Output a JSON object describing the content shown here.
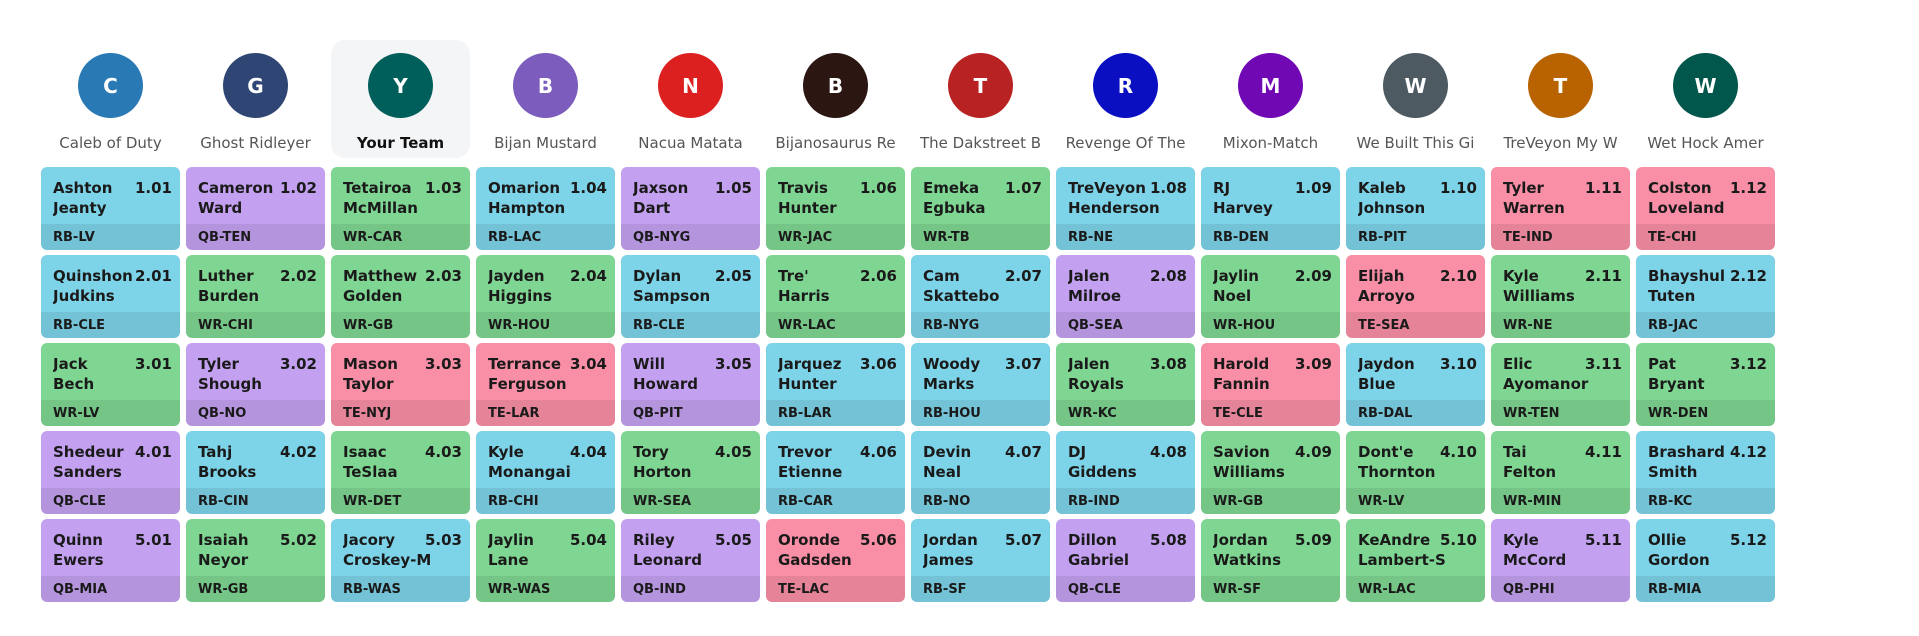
{
  "position_colors": {
    "RB": "#7dd3e8",
    "QB": "#c4a1f0",
    "WR": "#7fd693",
    "TE": "#f98fa6"
  },
  "teams": [
    {
      "initial": "C",
      "name": "Caleb of Duty",
      "color": "#2979b5",
      "current": false
    },
    {
      "initial": "G",
      "name": "Ghost Ridleyer",
      "color": "#2f4675",
      "current": false
    },
    {
      "initial": "Y",
      "name": "Your Team",
      "color": "#005f5a",
      "current": true
    },
    {
      "initial": "B",
      "name": "Bijan Mustard",
      "color": "#7c5dbd",
      "current": false
    },
    {
      "initial": "N",
      "name": "Nacua Matata",
      "color": "#dc2020",
      "current": false
    },
    {
      "initial": "B",
      "name": "Bijanosaurus Re",
      "color": "#2b1611",
      "current": false
    },
    {
      "initial": "T",
      "name": "The Dakstreet B",
      "color": "#b82222",
      "current": false
    },
    {
      "initial": "R",
      "name": "Revenge Of The",
      "color": "#0a10c2",
      "current": false
    },
    {
      "initial": "M",
      "name": "Mixon-Match",
      "color": "#7008b3",
      "current": false
    },
    {
      "initial": "W",
      "name": "We Built This Gi",
      "color": "#4d5a62",
      "current": false
    },
    {
      "initial": "T",
      "name": "TreVeyon My W",
      "color": "#b86200",
      "current": false
    },
    {
      "initial": "W",
      "name": "Wet Hock Amer",
      "color": "#02574c",
      "current": false
    }
  ],
  "rounds": [
    [
      {
        "first": "Ashton",
        "last": "Jeanty",
        "num": "1.01",
        "pos": "RB",
        "team": "RB-LV"
      },
      {
        "first": "Cameron",
        "last": "Ward",
        "num": "1.02",
        "pos": "QB",
        "team": "QB-TEN"
      },
      {
        "first": "Tetairoa",
        "last": "McMillan",
        "num": "1.03",
        "pos": "WR",
        "team": "WR-CAR"
      },
      {
        "first": "Omarion",
        "last": "Hampton",
        "num": "1.04",
        "pos": "RB",
        "team": "RB-LAC"
      },
      {
        "first": "Jaxson",
        "last": "Dart",
        "num": "1.05",
        "pos": "QB",
        "team": "QB-NYG"
      },
      {
        "first": "Travis",
        "last": "Hunter",
        "num": "1.06",
        "pos": "WR",
        "team": "WR-JAC"
      },
      {
        "first": "Emeka",
        "last": "Egbuka",
        "num": "1.07",
        "pos": "WR",
        "team": "WR-TB"
      },
      {
        "first": "TreVeyon",
        "last": "Henderson",
        "num": "1.08",
        "pos": "RB",
        "team": "RB-NE"
      },
      {
        "first": "RJ",
        "last": "Harvey",
        "num": "1.09",
        "pos": "RB",
        "team": "RB-DEN"
      },
      {
        "first": "Kaleb",
        "last": "Johnson",
        "num": "1.10",
        "pos": "RB",
        "team": "RB-PIT"
      },
      {
        "first": "Tyler",
        "last": "Warren",
        "num": "1.11",
        "pos": "TE",
        "team": "TE-IND"
      },
      {
        "first": "Colston",
        "last": "Loveland",
        "num": "1.12",
        "pos": "TE",
        "team": "TE-CHI"
      }
    ],
    [
      {
        "first": "Quinshon",
        "last": "Judkins",
        "num": "2.01",
        "pos": "RB",
        "team": "RB-CLE"
      },
      {
        "first": "Luther",
        "last": "Burden",
        "num": "2.02",
        "pos": "WR",
        "team": "WR-CHI"
      },
      {
        "first": "Matthew",
        "last": "Golden",
        "num": "2.03",
        "pos": "WR",
        "team": "WR-GB"
      },
      {
        "first": "Jayden",
        "last": "Higgins",
        "num": "2.04",
        "pos": "WR",
        "team": "WR-HOU"
      },
      {
        "first": "Dylan",
        "last": "Sampson",
        "num": "2.05",
        "pos": "RB",
        "team": "RB-CLE"
      },
      {
        "first": "Tre'",
        "last": "Harris",
        "num": "2.06",
        "pos": "WR",
        "team": "WR-LAC"
      },
      {
        "first": "Cam",
        "last": "Skattebo",
        "num": "2.07",
        "pos": "RB",
        "team": "RB-NYG"
      },
      {
        "first": "Jalen",
        "last": "Milroe",
        "num": "2.08",
        "pos": "QB",
        "team": "QB-SEA"
      },
      {
        "first": "Jaylin",
        "last": "Noel",
        "num": "2.09",
        "pos": "WR",
        "team": "WR-HOU"
      },
      {
        "first": "Elijah",
        "last": "Arroyo",
        "num": "2.10",
        "pos": "TE",
        "team": "TE-SEA"
      },
      {
        "first": "Kyle",
        "last": "Williams",
        "num": "2.11",
        "pos": "WR",
        "team": "WR-NE"
      },
      {
        "first": "Bhayshul",
        "last": "Tuten",
        "num": "2.12",
        "pos": "RB",
        "team": "RB-JAC"
      }
    ],
    [
      {
        "first": "Jack",
        "last": "Bech",
        "num": "3.01",
        "pos": "WR",
        "team": "WR-LV"
      },
      {
        "first": "Tyler",
        "last": "Shough",
        "num": "3.02",
        "pos": "QB",
        "team": "QB-NO"
      },
      {
        "first": "Mason",
        "last": "Taylor",
        "num": "3.03",
        "pos": "TE",
        "team": "TE-NYJ"
      },
      {
        "first": "Terrance",
        "last": "Ferguson",
        "num": "3.04",
        "pos": "TE",
        "team": "TE-LAR"
      },
      {
        "first": "Will",
        "last": "Howard",
        "num": "3.05",
        "pos": "QB",
        "team": "QB-PIT"
      },
      {
        "first": "Jarquez",
        "last": "Hunter",
        "num": "3.06",
        "pos": "RB",
        "team": "RB-LAR"
      },
      {
        "first": "Woody",
        "last": "Marks",
        "num": "3.07",
        "pos": "RB",
        "team": "RB-HOU"
      },
      {
        "first": "Jalen",
        "last": "Royals",
        "num": "3.08",
        "pos": "WR",
        "team": "WR-KC"
      },
      {
        "first": "Harold",
        "last": "Fannin",
        "num": "3.09",
        "pos": "TE",
        "team": "TE-CLE"
      },
      {
        "first": "Jaydon",
        "last": "Blue",
        "num": "3.10",
        "pos": "RB",
        "team": "RB-DAL"
      },
      {
        "first": "Elic",
        "last": "Ayomanor",
        "num": "3.11",
        "pos": "WR",
        "team": "WR-TEN"
      },
      {
        "first": "Pat",
        "last": "Bryant",
        "num": "3.12",
        "pos": "WR",
        "team": "WR-DEN"
      }
    ],
    [
      {
        "first": "Shedeur",
        "last": "Sanders",
        "num": "4.01",
        "pos": "QB",
        "team": "QB-CLE"
      },
      {
        "first": "Tahj",
        "last": "Brooks",
        "num": "4.02",
        "pos": "RB",
        "team": "RB-CIN"
      },
      {
        "first": "Isaac",
        "last": "TeSlaa",
        "num": "4.03",
        "pos": "WR",
        "team": "WR-DET"
      },
      {
        "first": "Kyle",
        "last": "Monangai",
        "num": "4.04",
        "pos": "RB",
        "team": "RB-CHI"
      },
      {
        "first": "Tory",
        "last": "Horton",
        "num": "4.05",
        "pos": "WR",
        "team": "WR-SEA"
      },
      {
        "first": "Trevor",
        "last": "Etienne",
        "num": "4.06",
        "pos": "RB",
        "team": "RB-CAR"
      },
      {
        "first": "Devin",
        "last": "Neal",
        "num": "4.07",
        "pos": "RB",
        "team": "RB-NO"
      },
      {
        "first": "DJ",
        "last": "Giddens",
        "num": "4.08",
        "pos": "RB",
        "team": "RB-IND"
      },
      {
        "first": "Savion",
        "last": "Williams",
        "num": "4.09",
        "pos": "WR",
        "team": "WR-GB"
      },
      {
        "first": "Dont'e",
        "last": "Thornton",
        "num": "4.10",
        "pos": "WR",
        "team": "WR-LV"
      },
      {
        "first": "Tai",
        "last": "Felton",
        "num": "4.11",
        "pos": "WR",
        "team": "WR-MIN"
      },
      {
        "first": "Brashard",
        "last": "Smith",
        "num": "4.12",
        "pos": "RB",
        "team": "RB-KC"
      }
    ],
    [
      {
        "first": "Quinn",
        "last": "Ewers",
        "num": "5.01",
        "pos": "QB",
        "team": "QB-MIA"
      },
      {
        "first": "Isaiah",
        "last": "Neyor",
        "num": "5.02",
        "pos": "WR",
        "team": "WR-GB"
      },
      {
        "first": "Jacory",
        "last": "Croskey-M",
        "num": "5.03",
        "pos": "RB",
        "team": "RB-WAS"
      },
      {
        "first": "Jaylin",
        "last": "Lane",
        "num": "5.04",
        "pos": "WR",
        "team": "WR-WAS"
      },
      {
        "first": "Riley",
        "last": "Leonard",
        "num": "5.05",
        "pos": "QB",
        "team": "QB-IND"
      },
      {
        "first": "Oronde",
        "last": "Gadsden",
        "num": "5.06",
        "pos": "TE",
        "team": "TE-LAC"
      },
      {
        "first": "Jordan",
        "last": "James",
        "num": "5.07",
        "pos": "RB",
        "team": "RB-SF"
      },
      {
        "first": "Dillon",
        "last": "Gabriel",
        "num": "5.08",
        "pos": "QB",
        "team": "QB-CLE"
      },
      {
        "first": "Jordan",
        "last": "Watkins",
        "num": "5.09",
        "pos": "WR",
        "team": "WR-SF"
      },
      {
        "first": "KeAndre",
        "last": "Lambert-S",
        "num": "5.10",
        "pos": "WR",
        "team": "WR-LAC"
      },
      {
        "first": "Kyle",
        "last": "McCord",
        "num": "5.11",
        "pos": "QB",
        "team": "QB-PHI"
      },
      {
        "first": "Ollie",
        "last": "Gordon",
        "num": "5.12",
        "pos": "RB",
        "team": "RB-MIA"
      }
    ]
  ]
}
